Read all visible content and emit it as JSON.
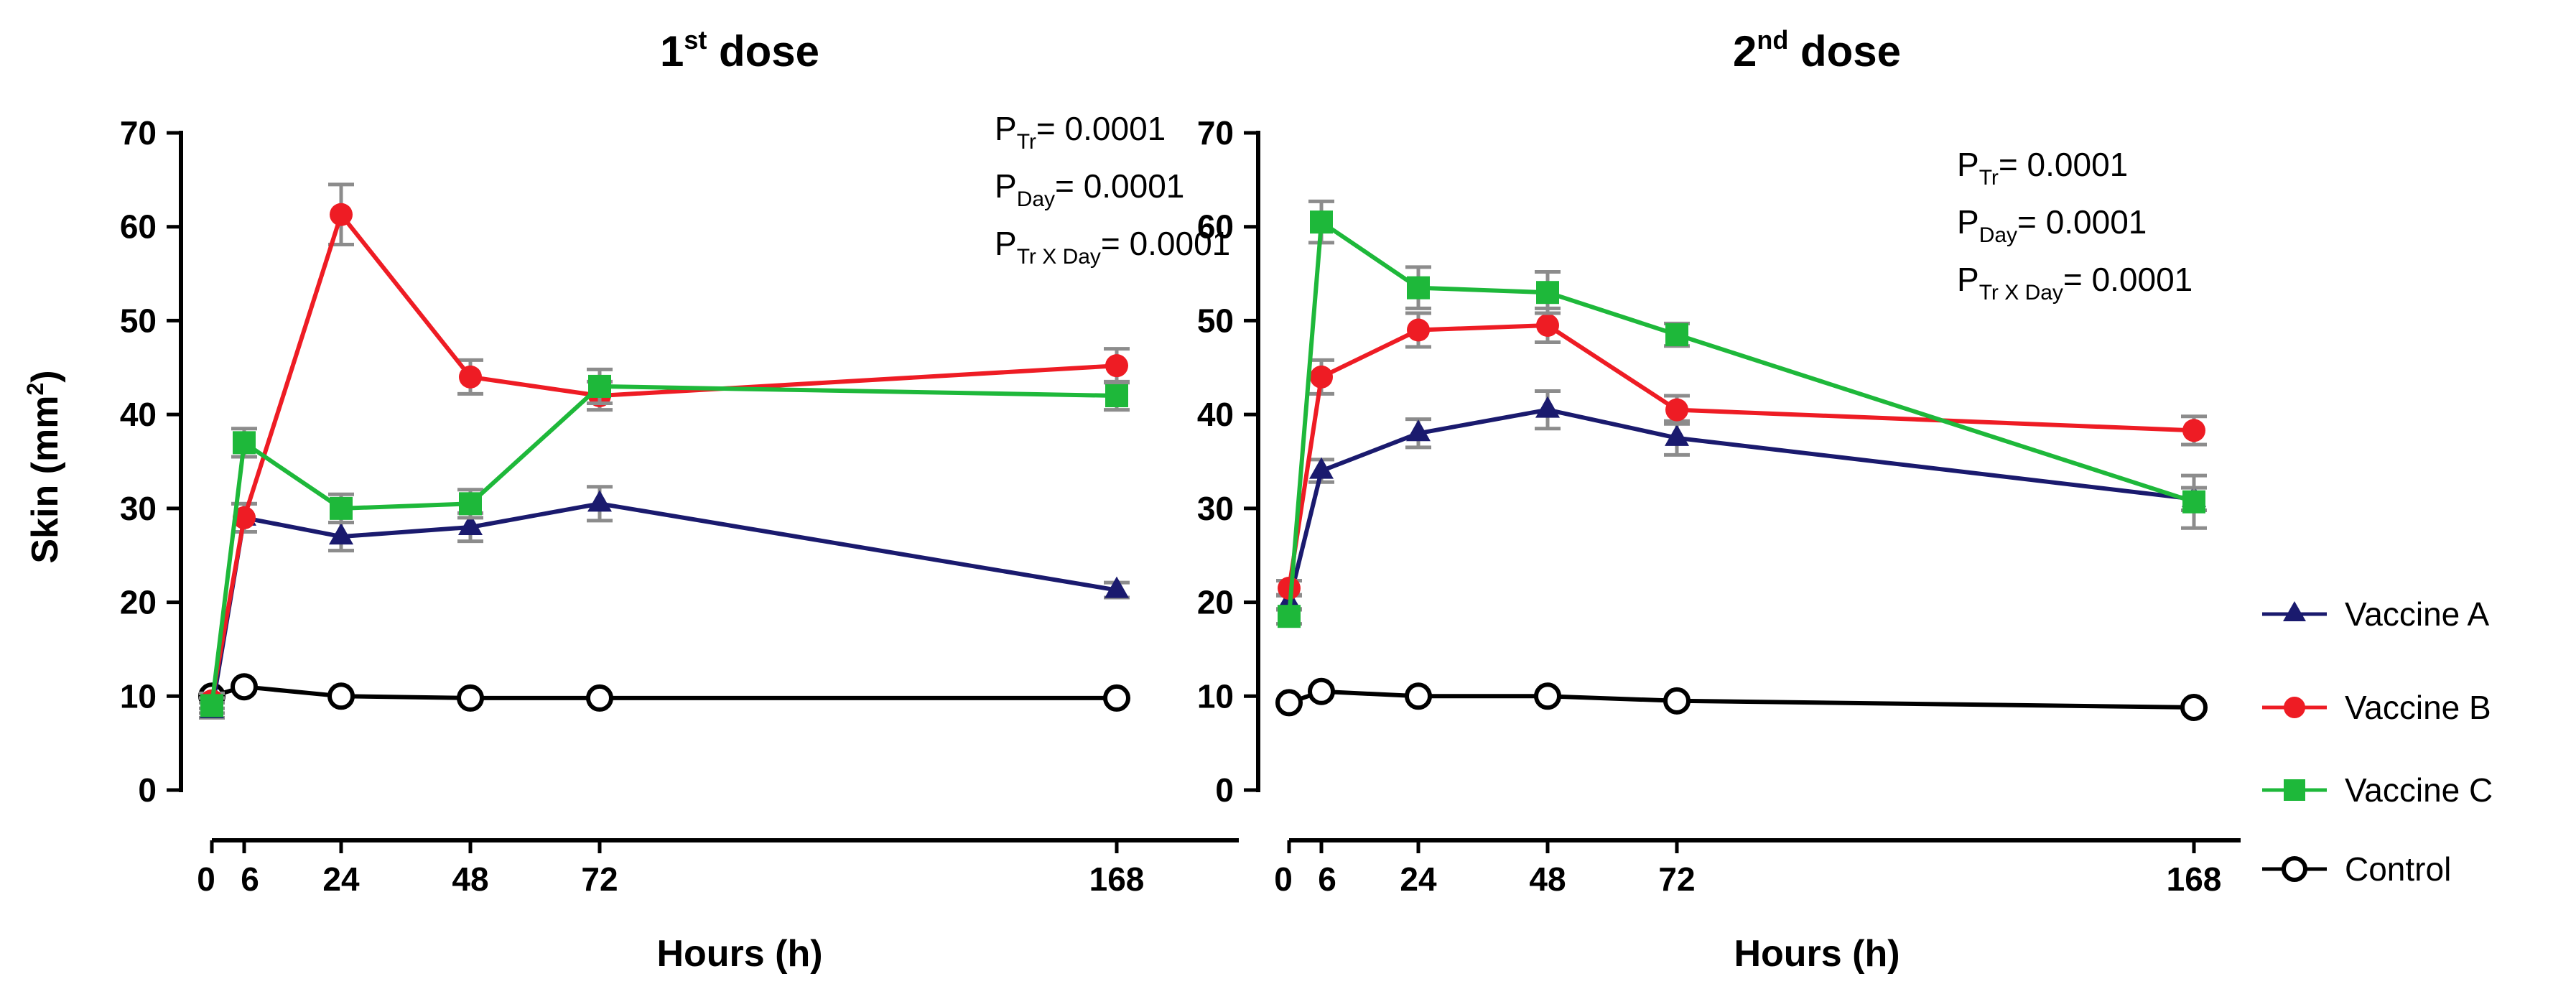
{
  "figure": {
    "ylabel_main": "Skin (mm",
    "ylabel_sup": "2",
    "ylabel_close": ")",
    "xlabel": "Hours (h)"
  },
  "legend": [
    {
      "name": "Vaccine A",
      "color": "#1a1a6e",
      "marker": "triangle"
    },
    {
      "name": "Vaccine B",
      "color": "#ee1c24",
      "marker": "circle"
    },
    {
      "name": "Vaccine C",
      "color": "#1eb83a",
      "marker": "square"
    },
    {
      "name": "Control",
      "color": "#000000",
      "marker": "open-circle"
    }
  ],
  "chart_data": [
    {
      "type": "line",
      "title_main": "1",
      "title_sup": "st",
      "title_rest": " dose",
      "xlabel": "Hours (h)",
      "ylabel": "Skin (mm2)",
      "xticks": [
        0,
        6,
        24,
        48,
        72,
        168
      ],
      "yticks": [
        0,
        10,
        20,
        30,
        40,
        50,
        60,
        70
      ],
      "ylim": [
        0,
        70
      ],
      "x": [
        0,
        6,
        24,
        48,
        72,
        168
      ],
      "series": [
        {
          "name": "Vaccine A",
          "values": [
            8.5,
            29,
            27,
            28,
            30.5,
            21.3
          ],
          "errors": [
            0.8,
            1.5,
            1.5,
            1.5,
            1.8,
            0.8
          ]
        },
        {
          "name": "Vaccine B",
          "values": [
            9.5,
            29,
            61.3,
            44,
            42,
            45.2
          ],
          "errors": [
            0.8,
            1.5,
            3.2,
            1.8,
            1.5,
            1.8
          ]
        },
        {
          "name": "Vaccine C",
          "values": [
            9,
            37,
            30,
            30.5,
            43,
            42
          ],
          "errors": [
            0.8,
            1.5,
            1.5,
            1.5,
            1.8,
            1.5
          ]
        },
        {
          "name": "Control",
          "values": [
            10,
            11,
            10,
            9.8,
            9.8,
            9.8
          ],
          "errors": [
            0,
            0,
            0,
            0,
            0,
            0
          ]
        }
      ],
      "annotations": [
        {
          "main": "P",
          "sub": "Tr",
          "rest": "= 0.0001"
        },
        {
          "main": "P",
          "sub": "Day",
          "rest": "= 0.0001"
        },
        {
          "main": "P",
          "sub": "Tr X Day",
          "rest": "= 0.0001"
        }
      ]
    },
    {
      "type": "line",
      "title_main": "2",
      "title_sup": "nd",
      "title_rest": " dose",
      "xlabel": "Hours (h)",
      "ylabel": "Skin (mm2)",
      "xticks": [
        0,
        6,
        24,
        48,
        72,
        168
      ],
      "yticks": [
        0,
        10,
        20,
        30,
        40,
        50,
        60,
        70
      ],
      "ylim": [
        0,
        70
      ],
      "x": [
        0,
        6,
        24,
        48,
        72,
        168
      ],
      "series": [
        {
          "name": "Vaccine A",
          "values": [
            20,
            34,
            38,
            40.5,
            37.5,
            31
          ],
          "errors": [
            0.8,
            1.2,
            1.5,
            2,
            1.8,
            1.2
          ]
        },
        {
          "name": "Vaccine B",
          "values": [
            21.5,
            44,
            49,
            49.5,
            40.5,
            38.3
          ],
          "errors": [
            0.8,
            1.8,
            1.8,
            1.8,
            1.5,
            1.5
          ]
        },
        {
          "name": "Vaccine C",
          "values": [
            18.5,
            60.5,
            53.5,
            53,
            48.5,
            30.7
          ],
          "errors": [
            0.8,
            2.2,
            2.2,
            2.2,
            1.2,
            2.8
          ]
        },
        {
          "name": "Control",
          "values": [
            9.3,
            10.5,
            10,
            10,
            9.5,
            8.8
          ],
          "errors": [
            0,
            0,
            0,
            0,
            0,
            0
          ]
        }
      ],
      "annotations": [
        {
          "main": "P",
          "sub": "Tr",
          "rest": "= 0.0001"
        },
        {
          "main": "P",
          "sub": "Day",
          "rest": "= 0.0001"
        },
        {
          "main": "P",
          "sub": "Tr X Day",
          "rest": "= 0.0001"
        }
      ]
    }
  ]
}
